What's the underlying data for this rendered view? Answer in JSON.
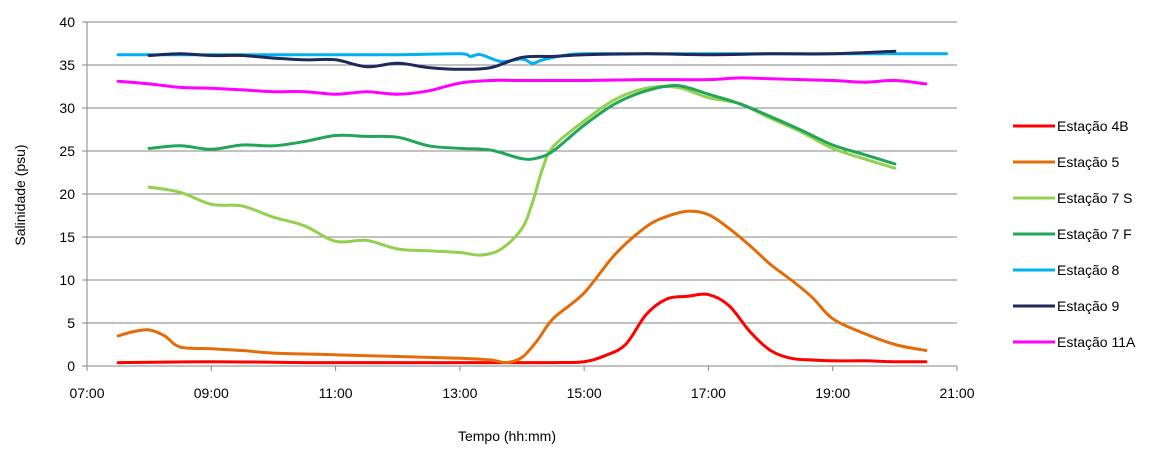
{
  "chart_data": {
    "type": "line",
    "xlabel": "Tempo (hh:mm)",
    "ylabel": "Salinidade (psu)",
    "xlim": [
      "07:00",
      "21:00"
    ],
    "ylim": [
      0,
      40
    ],
    "x_ticks": [
      "07:00",
      "09:00",
      "11:00",
      "13:00",
      "15:00",
      "17:00",
      "19:00",
      "21:00"
    ],
    "y_ticks": [
      0,
      5,
      10,
      15,
      20,
      25,
      30,
      35,
      40
    ],
    "grid": "horizontal",
    "legend_position": "right",
    "series": [
      {
        "name": "Estação 4B",
        "color": "#ff0000",
        "points": [
          [
            "07:30",
            0.4
          ],
          [
            "09:00",
            0.5
          ],
          [
            "10:30",
            0.4
          ],
          [
            "12:00",
            0.4
          ],
          [
            "13:30",
            0.4
          ],
          [
            "14:30",
            0.4
          ],
          [
            "15:00",
            0.5
          ],
          [
            "15:20",
            1.2
          ],
          [
            "15:40",
            2.5
          ],
          [
            "16:00",
            6
          ],
          [
            "16:20",
            7.8
          ],
          [
            "16:40",
            8.1
          ],
          [
            "17:00",
            8.3
          ],
          [
            "17:20",
            7
          ],
          [
            "17:40",
            4
          ],
          [
            "18:00",
            1.8
          ],
          [
            "18:20",
            0.9
          ],
          [
            "18:40",
            0.7
          ],
          [
            "19:00",
            0.6
          ],
          [
            "19:30",
            0.6
          ],
          [
            "20:00",
            0.5
          ],
          [
            "20:30",
            0.5
          ]
        ]
      },
      {
        "name": "Estação 5",
        "color": "#e36c09",
        "points": [
          [
            "07:30",
            3.5
          ],
          [
            "07:45",
            4
          ],
          [
            "08:00",
            4.2
          ],
          [
            "08:15",
            3.5
          ],
          [
            "08:30",
            2.2
          ],
          [
            "09:00",
            2
          ],
          [
            "09:30",
            1.8
          ],
          [
            "10:00",
            1.5
          ],
          [
            "11:00",
            1.3
          ],
          [
            "12:00",
            1.1
          ],
          [
            "13:00",
            0.9
          ],
          [
            "13:30",
            0.7
          ],
          [
            "13:45",
            0.4
          ],
          [
            "14:00",
            1
          ],
          [
            "14:15",
            3
          ],
          [
            "14:30",
            5.5
          ],
          [
            "15:00",
            8.5
          ],
          [
            "15:30",
            13
          ],
          [
            "16:00",
            16.2
          ],
          [
            "16:20",
            17.4
          ],
          [
            "16:40",
            18
          ],
          [
            "17:00",
            17.6
          ],
          [
            "17:20",
            16
          ],
          [
            "17:40",
            14
          ],
          [
            "18:00",
            11.8
          ],
          [
            "18:20",
            10
          ],
          [
            "18:40",
            8
          ],
          [
            "19:00",
            5.5
          ],
          [
            "19:30",
            3.8
          ],
          [
            "20:00",
            2.5
          ],
          [
            "20:30",
            1.8
          ]
        ]
      },
      {
        "name": "Estação 7 S",
        "color": "#92d050",
        "points": [
          [
            "08:00",
            20.8
          ],
          [
            "08:30",
            20.2
          ],
          [
            "09:00",
            18.8
          ],
          [
            "09:30",
            18.6
          ],
          [
            "10:00",
            17.3
          ],
          [
            "10:30",
            16.3
          ],
          [
            "11:00",
            14.5
          ],
          [
            "11:30",
            14.6
          ],
          [
            "12:00",
            13.6
          ],
          [
            "12:30",
            13.4
          ],
          [
            "13:00",
            13.2
          ],
          [
            "13:20",
            12.9
          ],
          [
            "13:40",
            13.6
          ],
          [
            "14:00",
            16
          ],
          [
            "14:10",
            19
          ],
          [
            "14:20",
            23
          ],
          [
            "14:30",
            25.5
          ],
          [
            "15:00",
            28.5
          ],
          [
            "15:30",
            31
          ],
          [
            "16:00",
            32.3
          ],
          [
            "16:30",
            32.4
          ],
          [
            "17:00",
            31.2
          ],
          [
            "17:30",
            30.5
          ],
          [
            "18:00",
            28.8
          ],
          [
            "18:30",
            27.2
          ],
          [
            "19:00",
            25.3
          ],
          [
            "19:30",
            24.1
          ],
          [
            "20:00",
            23
          ]
        ]
      },
      {
        "name": "Estação 7 F",
        "color": "#21a657",
        "points": [
          [
            "08:00",
            25.3
          ],
          [
            "08:30",
            25.6
          ],
          [
            "09:00",
            25.2
          ],
          [
            "09:30",
            25.7
          ],
          [
            "10:00",
            25.6
          ],
          [
            "10:30",
            26.1
          ],
          [
            "11:00",
            26.8
          ],
          [
            "11:30",
            26.7
          ],
          [
            "12:00",
            26.6
          ],
          [
            "12:30",
            25.6
          ],
          [
            "13:00",
            25.3
          ],
          [
            "13:30",
            25.1
          ],
          [
            "14:00",
            24.1
          ],
          [
            "14:15",
            24.2
          ],
          [
            "14:30",
            25
          ],
          [
            "15:00",
            28
          ],
          [
            "15:30",
            30.5
          ],
          [
            "16:00",
            32
          ],
          [
            "16:30",
            32.6
          ],
          [
            "17:00",
            31.6
          ],
          [
            "17:30",
            30.5
          ],
          [
            "18:00",
            29
          ],
          [
            "18:30",
            27.4
          ],
          [
            "19:00",
            25.7
          ],
          [
            "19:30",
            24.6
          ],
          [
            "20:00",
            23.5
          ]
        ]
      },
      {
        "name": "Estação 8",
        "color": "#00b0f0",
        "points": [
          [
            "07:30",
            36.2
          ],
          [
            "09:00",
            36.2
          ],
          [
            "10:30",
            36.2
          ],
          [
            "12:00",
            36.2
          ],
          [
            "13:00",
            36.3
          ],
          [
            "13:10",
            36
          ],
          [
            "13:20",
            36.2
          ],
          [
            "13:40",
            35.4
          ],
          [
            "14:00",
            35.7
          ],
          [
            "14:10",
            35.2
          ],
          [
            "14:20",
            35.6
          ],
          [
            "14:40",
            36.1
          ],
          [
            "15:00",
            36.3
          ],
          [
            "16:00",
            36.3
          ],
          [
            "17:00",
            36.3
          ],
          [
            "18:00",
            36.3
          ],
          [
            "19:00",
            36.3
          ],
          [
            "20:00",
            36.3
          ],
          [
            "20:50",
            36.3
          ]
        ]
      },
      {
        "name": "Estação 9",
        "color": "#1f2a5a",
        "points": [
          [
            "08:00",
            36.1
          ],
          [
            "08:30",
            36.3
          ],
          [
            "09:00",
            36.1
          ],
          [
            "09:30",
            36.1
          ],
          [
            "10:00",
            35.8
          ],
          [
            "10:30",
            35.6
          ],
          [
            "11:00",
            35.6
          ],
          [
            "11:30",
            34.8
          ],
          [
            "12:00",
            35.2
          ],
          [
            "12:30",
            34.7
          ],
          [
            "13:00",
            34.5
          ],
          [
            "13:30",
            34.7
          ],
          [
            "14:00",
            35.9
          ],
          [
            "14:30",
            36
          ],
          [
            "15:00",
            36.2
          ],
          [
            "16:00",
            36.3
          ],
          [
            "17:00",
            36.2
          ],
          [
            "18:00",
            36.3
          ],
          [
            "19:00",
            36.3
          ],
          [
            "20:00",
            36.6
          ]
        ]
      },
      {
        "name": "Estação 11A",
        "color": "#ff00ff",
        "points": [
          [
            "07:30",
            33.1
          ],
          [
            "08:00",
            32.8
          ],
          [
            "08:30",
            32.4
          ],
          [
            "09:00",
            32.3
          ],
          [
            "09:30",
            32.1
          ],
          [
            "10:00",
            31.9
          ],
          [
            "10:30",
            31.9
          ],
          [
            "11:00",
            31.6
          ],
          [
            "11:30",
            31.9
          ],
          [
            "12:00",
            31.6
          ],
          [
            "12:30",
            32
          ],
          [
            "13:00",
            32.9
          ],
          [
            "13:30",
            33.2
          ],
          [
            "14:00",
            33.2
          ],
          [
            "15:00",
            33.2
          ],
          [
            "16:00",
            33.3
          ],
          [
            "17:00",
            33.3
          ],
          [
            "17:30",
            33.5
          ],
          [
            "18:00",
            33.4
          ],
          [
            "19:00",
            33.2
          ],
          [
            "19:30",
            33
          ],
          [
            "20:00",
            33.2
          ],
          [
            "20:30",
            32.8
          ]
        ]
      }
    ]
  }
}
